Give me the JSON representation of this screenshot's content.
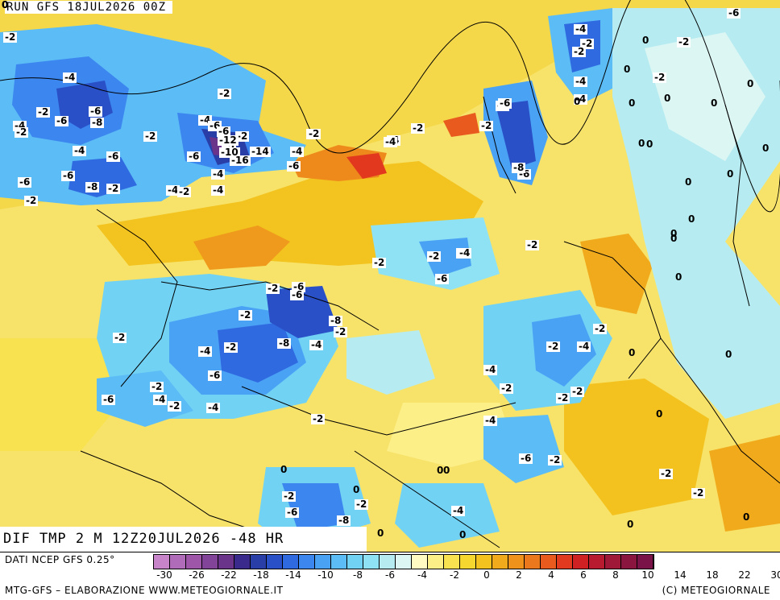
{
  "run_title": "RUN GFS 18JUL2026 00Z",
  "variable_title": "DIF TMP 2 M 12Z20JUL2026 -48 HR",
  "legend": {
    "source": "DATI NCEP GFS 0.25°",
    "colors": [
      "#c784c9",
      "#b06cb8",
      "#9d56a8",
      "#824499",
      "#6a348a",
      "#3a2a8c",
      "#2a3ea8",
      "#2a50c8",
      "#2f6ae0",
      "#3c86ef",
      "#4aa2f5",
      "#5cbcf6",
      "#72d2f4",
      "#8fe2f3",
      "#b6ecf1",
      "#dcf6f4",
      "#fff9c2",
      "#fcef88",
      "#f8e24f",
      "#f5d730",
      "#f3c21e",
      "#f0aa1c",
      "#ee921c",
      "#ec781e",
      "#e85a1e",
      "#e13a1e",
      "#cf2024",
      "#b81a30",
      "#a01838",
      "#8a1640",
      "#7a1448"
    ],
    "tick_labels": [
      "-30",
      "-26",
      "-22",
      "-18",
      "-14",
      "-10",
      "-8",
      "-6",
      "-4",
      "-2",
      "0",
      "2",
      "4",
      "6",
      "8",
      "10",
      "14",
      "18",
      "22",
      "30"
    ]
  },
  "footer": {
    "left": "MTG-GFS – ELABORAZIONE WWW.METEOGIORNALE.IT",
    "right": "(C) METEOGIORNALE"
  },
  "contour_labels": [
    "-2",
    "-4",
    "-2",
    "-2",
    "-4",
    "-6",
    "-4",
    "-2",
    "-2",
    "0",
    "-4",
    "-2",
    "-4",
    "0",
    "-2",
    "0",
    "-4",
    "-2",
    "-6",
    "-2",
    "-6",
    "-8",
    "-2",
    "-6",
    "-4",
    "-6",
    "-2",
    "-8",
    "-2",
    "-6",
    "-2",
    "-12",
    "-4",
    "0",
    "-6",
    "-4",
    "-10",
    "-14",
    "-4",
    "-2",
    "-6",
    "-16",
    "-4",
    "-6",
    "-6",
    "-8",
    "-6",
    "-2",
    "-2",
    "-6",
    "-2",
    "-8",
    "-4",
    "-4",
    "-2",
    "0",
    "-2",
    "-4",
    "-2",
    "-6",
    "-2",
    "-2",
    "-6",
    "0",
    "-4",
    "-8",
    "-4",
    "-8",
    "-6",
    "-2",
    "-2",
    "-4",
    "-6",
    "-2",
    "-2",
    "-6",
    "-4",
    "-4",
    "-2",
    "-2",
    "-2",
    "-2",
    "-6",
    "-4",
    "-2",
    "-2",
    "-4",
    "-2",
    "-2",
    "-2",
    "-4",
    "-6",
    "-2",
    "0",
    "-2",
    "-6",
    "-8",
    "0",
    "0",
    "-2",
    "-4",
    "-2",
    "-2",
    "0",
    "0",
    "0",
    "0",
    "0",
    "0",
    "0",
    "0",
    "0",
    "0",
    "0",
    "0",
    "0",
    "0",
    "0",
    "0",
    "0",
    "0",
    "0",
    "0"
  ]
}
